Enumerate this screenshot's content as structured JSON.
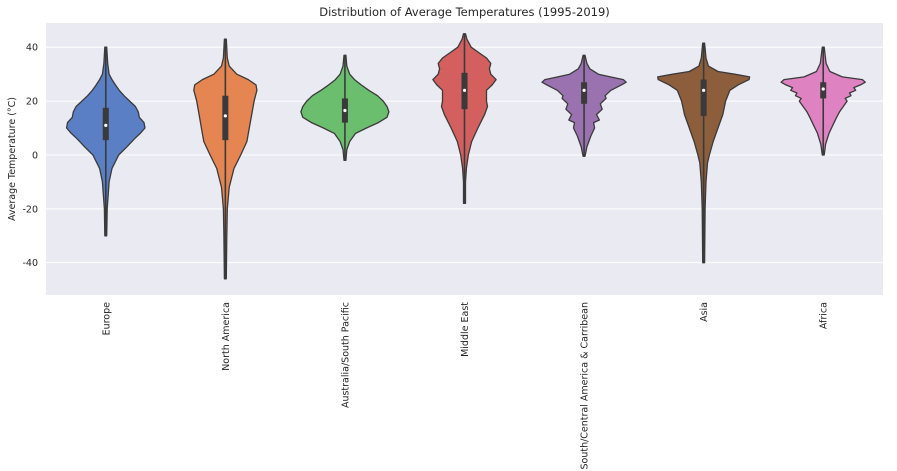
{
  "chart_data": {
    "type": "violin",
    "title": "Distribution of Average Temperatures (1995-2019)",
    "xlabel": "",
    "ylabel": "Average Temperature (°C)",
    "ylim": [
      -52,
      49
    ],
    "yticks": [
      -40,
      -20,
      0,
      20,
      40
    ],
    "grid": true,
    "legend": "none",
    "background": "#EAEAF2",
    "categories": [
      "Europe",
      "North America",
      "Australia/South Pacific",
      "Middle East",
      "South/Central America & Carribean",
      "Asia",
      "Africa"
    ],
    "series": [
      {
        "category": "Europe",
        "color": "#5A7FC4",
        "min": -30,
        "q1": 5.5,
        "median": 11,
        "q3": 17.5,
        "max": 40,
        "profile": [
          [
            -30,
            0.02
          ],
          [
            -20,
            0.03
          ],
          [
            -10,
            0.07
          ],
          [
            -5,
            0.13
          ],
          [
            0,
            0.27
          ],
          [
            3,
            0.44
          ],
          [
            6,
            0.6
          ],
          [
            8,
            0.72
          ],
          [
            10,
            0.82
          ],
          [
            12,
            0.8
          ],
          [
            14,
            0.7
          ],
          [
            16,
            0.68
          ],
          [
            18,
            0.62
          ],
          [
            20,
            0.5
          ],
          [
            22,
            0.38
          ],
          [
            24,
            0.28
          ],
          [
            26,
            0.2
          ],
          [
            28,
            0.13
          ],
          [
            30,
            0.07
          ],
          [
            34,
            0.04
          ],
          [
            40,
            0.02
          ]
        ]
      },
      {
        "category": "North America",
        "color": "#E58552",
        "min": -46,
        "q1": 5.5,
        "median": 14.5,
        "q3": 22,
        "max": 43,
        "profile": [
          [
            -46,
            0.02
          ],
          [
            -30,
            0.03
          ],
          [
            -20,
            0.04
          ],
          [
            -12,
            0.08
          ],
          [
            -5,
            0.18
          ],
          [
            0,
            0.32
          ],
          [
            5,
            0.45
          ],
          [
            10,
            0.5
          ],
          [
            15,
            0.55
          ],
          [
            20,
            0.6
          ],
          [
            24,
            0.66
          ],
          [
            26,
            0.64
          ],
          [
            28,
            0.48
          ],
          [
            30,
            0.24
          ],
          [
            33,
            0.08
          ],
          [
            36,
            0.04
          ],
          [
            43,
            0.02
          ]
        ]
      },
      {
        "category": "Australia/South Pacific",
        "color": "#6BBE6E",
        "min": -2,
        "q1": 12,
        "median": 16.5,
        "q3": 21,
        "max": 37,
        "profile": [
          [
            -2,
            0.02
          ],
          [
            2,
            0.04
          ],
          [
            5,
            0.1
          ],
          [
            8,
            0.22
          ],
          [
            10,
            0.45
          ],
          [
            12,
            0.7
          ],
          [
            14,
            0.88
          ],
          [
            16,
            0.92
          ],
          [
            18,
            0.88
          ],
          [
            20,
            0.8
          ],
          [
            22,
            0.68
          ],
          [
            24,
            0.5
          ],
          [
            26,
            0.34
          ],
          [
            28,
            0.2
          ],
          [
            30,
            0.1
          ],
          [
            33,
            0.04
          ],
          [
            37,
            0.02
          ]
        ]
      },
      {
        "category": "Middle East",
        "color": "#D35F5F",
        "min": -18,
        "q1": 17,
        "median": 24,
        "q3": 30.5,
        "max": 45,
        "profile": [
          [
            -18,
            0.02
          ],
          [
            -10,
            0.02
          ],
          [
            -5,
            0.04
          ],
          [
            0,
            0.08
          ],
          [
            5,
            0.15
          ],
          [
            10,
            0.28
          ],
          [
            15,
            0.42
          ],
          [
            18,
            0.48
          ],
          [
            20,
            0.46
          ],
          [
            24,
            0.46
          ],
          [
            26,
            0.58
          ],
          [
            28,
            0.66
          ],
          [
            30,
            0.55
          ],
          [
            32,
            0.52
          ],
          [
            34,
            0.55
          ],
          [
            36,
            0.46
          ],
          [
            38,
            0.3
          ],
          [
            40,
            0.14
          ],
          [
            43,
            0.05
          ],
          [
            45,
            0.02
          ]
        ]
      },
      {
        "category": "South/Central America & Carribean",
        "color": "#9A72B0",
        "min": -0.5,
        "q1": 19,
        "median": 24,
        "q3": 27,
        "max": 37,
        "profile": [
          [
            -0.5,
            0.02
          ],
          [
            3,
            0.06
          ],
          [
            7,
            0.14
          ],
          [
            10,
            0.22
          ],
          [
            12,
            0.2
          ],
          [
            13,
            0.32
          ],
          [
            15,
            0.26
          ],
          [
            17,
            0.38
          ],
          [
            19,
            0.34
          ],
          [
            21,
            0.46
          ],
          [
            22,
            0.44
          ],
          [
            24,
            0.56
          ],
          [
            26,
            0.78
          ],
          [
            27,
            0.88
          ],
          [
            28,
            0.82
          ],
          [
            29,
            0.55
          ],
          [
            30,
            0.3
          ],
          [
            32,
            0.12
          ],
          [
            34,
            0.06
          ],
          [
            37,
            0.02
          ]
        ]
      },
      {
        "category": "Asia",
        "color": "#8D5E3C",
        "min": -40,
        "q1": 14.5,
        "median": 24,
        "q3": 28,
        "max": 41.5,
        "profile": [
          [
            -40,
            0.02
          ],
          [
            -20,
            0.03
          ],
          [
            -10,
            0.05
          ],
          [
            -3,
            0.08
          ],
          [
            0,
            0.12
          ],
          [
            5,
            0.2
          ],
          [
            10,
            0.3
          ],
          [
            15,
            0.4
          ],
          [
            20,
            0.46
          ],
          [
            24,
            0.55
          ],
          [
            26,
            0.72
          ],
          [
            28,
            0.95
          ],
          [
            29,
            0.96
          ],
          [
            30,
            0.65
          ],
          [
            31,
            0.3
          ],
          [
            33,
            0.1
          ],
          [
            36,
            0.05
          ],
          [
            41.5,
            0.02
          ]
        ]
      },
      {
        "category": "Africa",
        "color": "#DE82C1",
        "min": 0,
        "q1": 21,
        "median": 24.5,
        "q3": 27,
        "max": 40,
        "profile": [
          [
            0,
            0.02
          ],
          [
            4,
            0.05
          ],
          [
            8,
            0.12
          ],
          [
            11,
            0.2
          ],
          [
            14,
            0.28
          ],
          [
            16,
            0.34
          ],
          [
            18,
            0.42
          ],
          [
            20,
            0.5
          ],
          [
            21,
            0.46
          ],
          [
            22,
            0.58
          ],
          [
            23,
            0.55
          ],
          [
            24,
            0.68
          ],
          [
            25,
            0.64
          ],
          [
            26,
            0.78
          ],
          [
            27,
            0.88
          ],
          [
            28,
            0.82
          ],
          [
            29,
            0.4
          ],
          [
            31,
            0.14
          ],
          [
            34,
            0.06
          ],
          [
            40,
            0.02
          ]
        ]
      }
    ]
  }
}
